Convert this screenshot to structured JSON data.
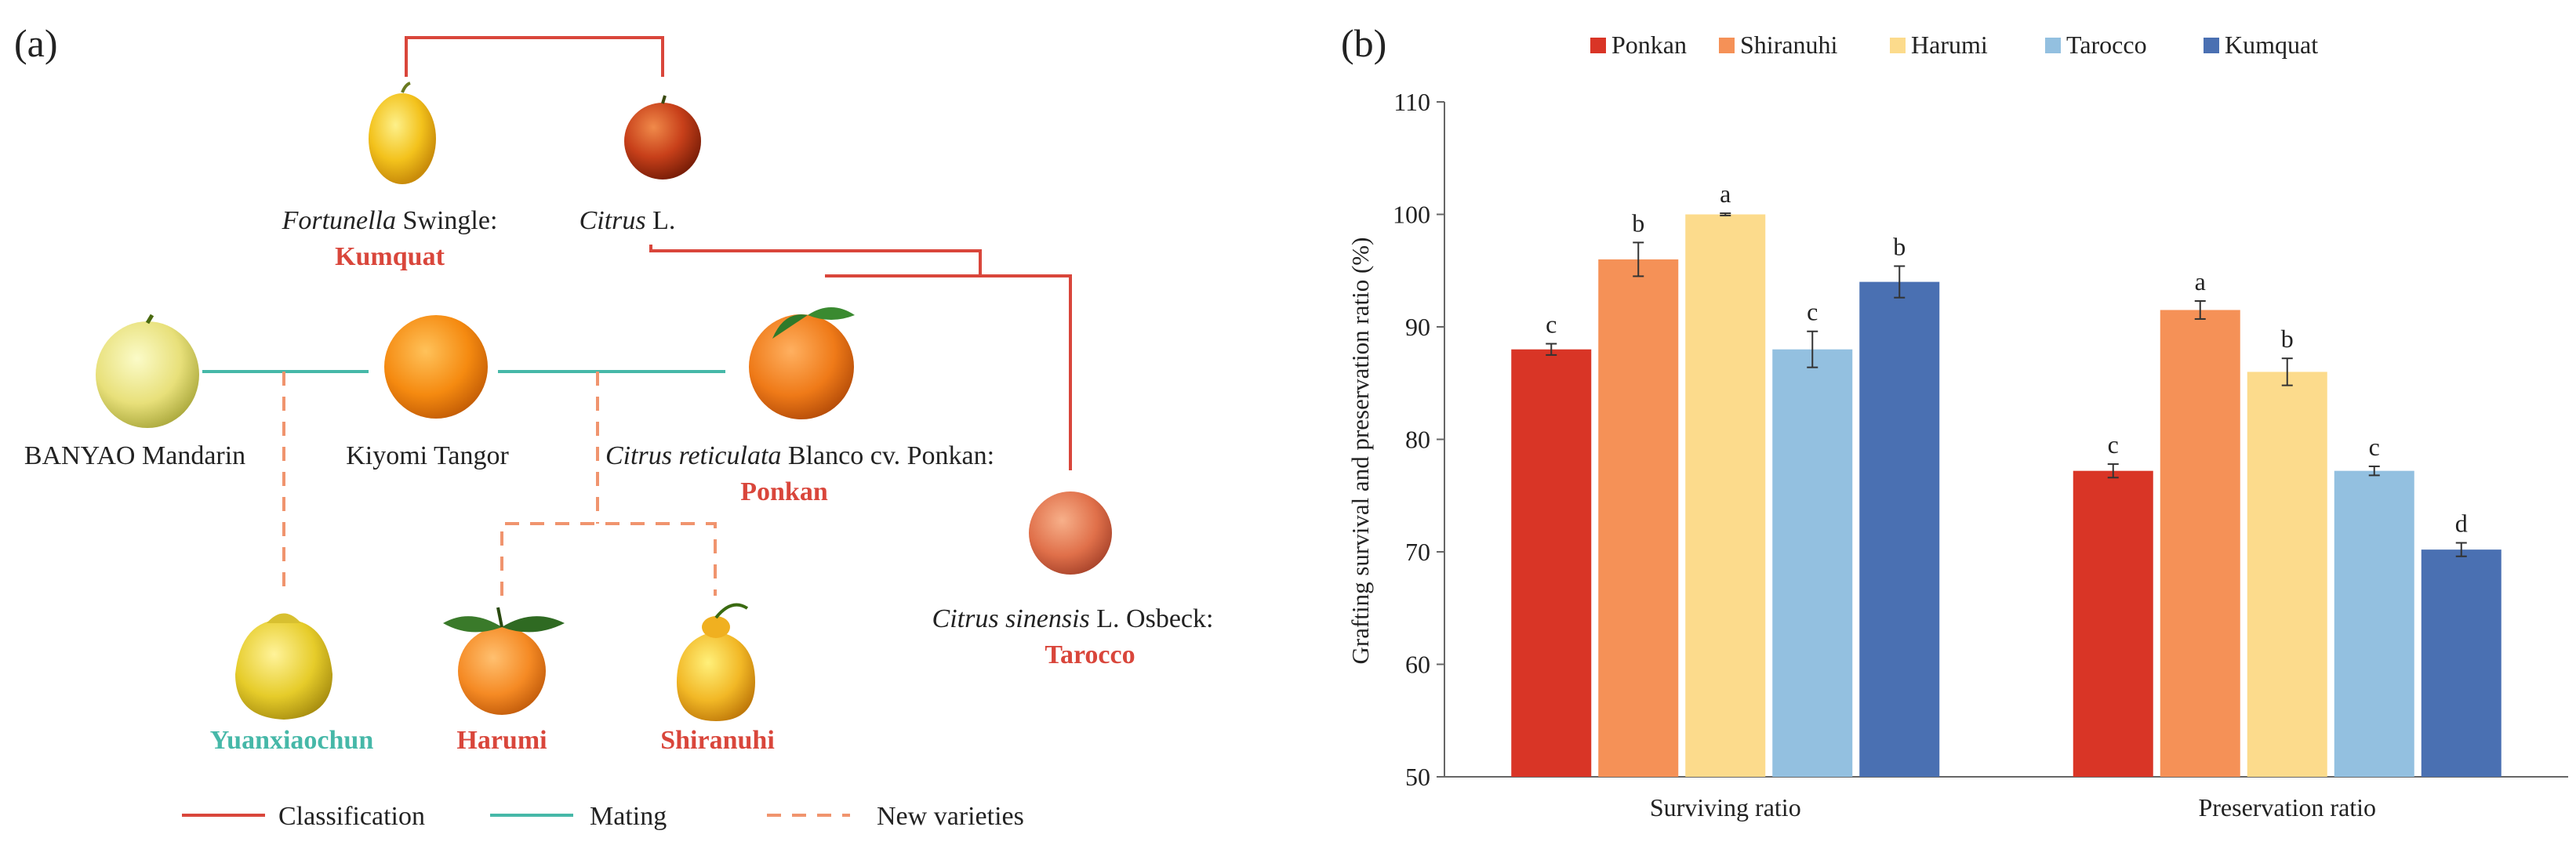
{
  "panel_a": {
    "label": "(a)",
    "colors": {
      "classification": "#d9463b",
      "mating": "#46b8a8",
      "new_varieties": "#f0946e"
    },
    "nodes": {
      "fortunella_genus": "Fortunella",
      "fortunella_rest": " Swingle:",
      "kumquat": "Kumquat",
      "citrus_genus": "Citrus",
      "citrus_rest": " L.",
      "banyao": "BANYAO Mandarin",
      "kiyomi": "Kiyomi Tangor",
      "ponkan_species": "Citrus reticulata",
      "ponkan_rest": " Blanco cv. Ponkan:",
      "ponkan": "Ponkan",
      "tarocco_species": "Citrus sinensis",
      "tarocco_rest": " L. Osbeck:",
      "tarocco": "Tarocco",
      "yuanxiaochun": "Yuanxiaochun",
      "harumi": "Harumi",
      "shiranuhi": "Shiranuhi"
    },
    "legend": {
      "classification": "Classification",
      "mating": "Mating",
      "new_varieties": "New varieties"
    }
  },
  "panel_b": {
    "label": "(b)"
  },
  "chart_data": {
    "type": "bar",
    "title": "",
    "xlabel": "",
    "ylabel": "Grafting  survival  and preservation  ratio (%)",
    "categories": [
      "Surviving ratio",
      "Preservation ratio"
    ],
    "ylim": [
      50,
      110
    ],
    "yticks": [
      50,
      60,
      70,
      80,
      90,
      100,
      110
    ],
    "grid": false,
    "legend_position": "top",
    "series": [
      {
        "name": "Ponkan",
        "color": "#d93526",
        "values": [
          88,
          77.2
        ],
        "errors": [
          0.5,
          0.6
        ],
        "letters": [
          "c",
          "c"
        ]
      },
      {
        "name": "Shiranuhi",
        "color": "#f59157",
        "values": [
          96,
          91.5
        ],
        "errors": [
          1.5,
          0.8
        ],
        "letters": [
          "b",
          "a"
        ]
      },
      {
        "name": "Harumi",
        "color": "#fcdb8c",
        "values": [
          100,
          86
        ],
        "errors": [
          0.1,
          1.2
        ],
        "letters": [
          "a",
          "b"
        ]
      },
      {
        "name": "Tarocco",
        "color": "#93c0e0",
        "values": [
          88,
          77.2
        ],
        "errors": [
          1.6,
          0.4
        ],
        "letters": [
          "c",
          "c"
        ]
      },
      {
        "name": "Kumquat",
        "color": "#4a70b2",
        "values": [
          94,
          70.2
        ],
        "errors": [
          1.4,
          0.6
        ],
        "letters": [
          "b",
          "d"
        ]
      }
    ]
  }
}
